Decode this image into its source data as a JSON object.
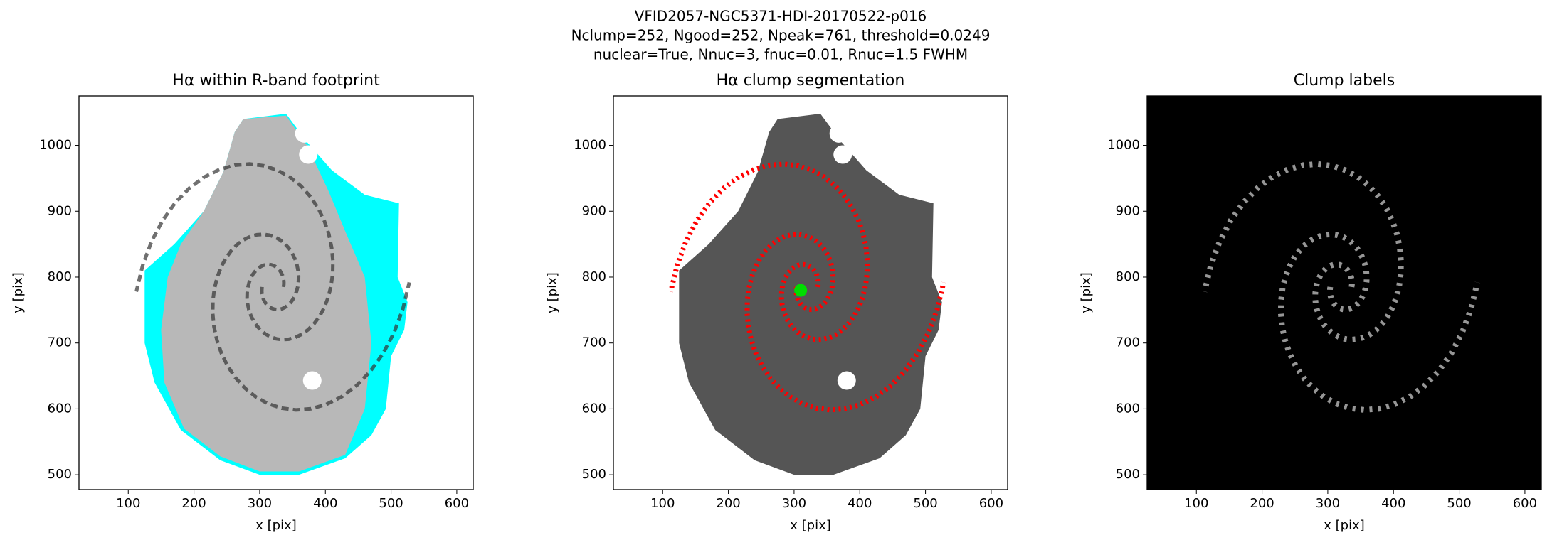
{
  "suptitle": [
    "VFID2057-NGC5371-HDI-20170522-p016",
    "Nclump=252, Ngood=252, Npeak=761, threshold=0.0249",
    "nuclear=True, Nnuc=3, fnuc=0.01, Rnuc=1.5 FWHM"
  ],
  "chart_data": [
    {
      "type": "image",
      "title": "Hα within R-band footprint",
      "xlabel": "x [pix]",
      "ylabel": "y [pix]",
      "xlim": [
        25,
        625
      ],
      "ylim": [
        477.5,
        1075
      ],
      "xticks": [
        100,
        200,
        300,
        400,
        500,
        600
      ],
      "yticks": [
        500,
        600,
        700,
        800,
        900,
        1000
      ]
    },
    {
      "type": "image",
      "title": "Hα clump segmentation",
      "xlabel": "x [pix]",
      "ylabel": "y [pix]",
      "xlim": [
        25,
        625
      ],
      "ylim": [
        477.5,
        1075
      ],
      "xticks": [
        100,
        200,
        300,
        400,
        500,
        600
      ],
      "yticks": [
        500,
        600,
        700,
        800,
        900,
        1000
      ]
    },
    {
      "type": "image",
      "title": "Clump labels",
      "xlabel": "x [pix]",
      "ylabel": "y [pix]",
      "xlim": [
        25,
        625
      ],
      "ylim": [
        477.5,
        1075
      ],
      "xticks": [
        100,
        200,
        300,
        400,
        500,
        600
      ],
      "yticks": [
        500,
        600,
        700,
        800,
        900,
        1000
      ]
    }
  ]
}
